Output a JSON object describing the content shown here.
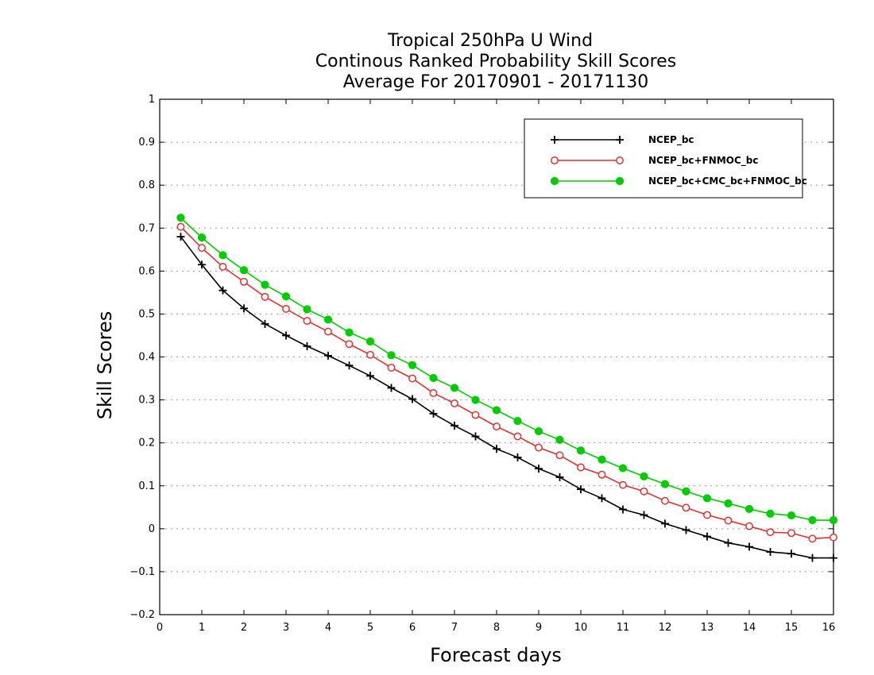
{
  "chart_data": {
    "type": "line",
    "title_lines": [
      "Tropical 250hPa U Wind",
      "Continous Ranked Probability Skill Scores",
      "Average For 20170901 - 20171130"
    ],
    "xlabel": "Forecast days",
    "ylabel": "Skill Scores",
    "xlim": [
      0,
      16
    ],
    "ylim": [
      -0.2,
      1
    ],
    "xticks": [
      "0",
      "1",
      "2",
      "3",
      "4",
      "5",
      "6",
      "7",
      "8",
      "9",
      "10",
      "11",
      "12",
      "13",
      "14",
      "15",
      "16"
    ],
    "yticks": [
      "−0.2",
      "−0.1",
      "0",
      "0.1",
      "0.2",
      "0.3",
      "0.4",
      "0.5",
      "0.6",
      "0.7",
      "0.8",
      "0.9",
      "1"
    ],
    "grid": "horizontal dotted",
    "legend_position": "top-right",
    "x": [
      0.5,
      1,
      1.5,
      2,
      2.5,
      3,
      3.5,
      4,
      4.5,
      5,
      5.5,
      6,
      6.5,
      7,
      7.5,
      8,
      8.5,
      9,
      9.5,
      10,
      10.5,
      11,
      11.5,
      12,
      12.5,
      13,
      13.5,
      14,
      14.5,
      15,
      15.5,
      16
    ],
    "series": [
      {
        "name": "NCEP_bc",
        "color": "#000000",
        "marker": "plus",
        "values": [
          0.68,
          0.615,
          0.555,
          0.513,
          0.477,
          0.45,
          0.425,
          0.403,
          0.38,
          0.356,
          0.328,
          0.302,
          0.268,
          0.24,
          0.215,
          0.186,
          0.166,
          0.14,
          0.12,
          0.092,
          0.071,
          0.045,
          0.032,
          0.012,
          -0.003,
          -0.018,
          -0.033,
          -0.042,
          -0.054,
          -0.058,
          -0.068,
          -0.068
        ]
      },
      {
        "name": "NCEP_bc+FNMOC_bc",
        "color": "#e03030",
        "marker": "open-circle",
        "values": [
          0.703,
          0.654,
          0.61,
          0.575,
          0.54,
          0.512,
          0.484,
          0.459,
          0.43,
          0.405,
          0.375,
          0.35,
          0.316,
          0.292,
          0.265,
          0.238,
          0.215,
          0.189,
          0.171,
          0.143,
          0.126,
          0.102,
          0.087,
          0.065,
          0.049,
          0.032,
          0.019,
          0.006,
          -0.008,
          -0.01,
          -0.023,
          -0.02
        ]
      },
      {
        "name": "NCEP_bc+CMC_bc+FNMOC_bc",
        "color": "#00cc00",
        "marker": "filled-circle",
        "values": [
          0.724,
          0.678,
          0.637,
          0.602,
          0.568,
          0.541,
          0.511,
          0.487,
          0.457,
          0.436,
          0.404,
          0.381,
          0.351,
          0.328,
          0.3,
          0.276,
          0.251,
          0.227,
          0.207,
          0.182,
          0.161,
          0.141,
          0.122,
          0.104,
          0.087,
          0.071,
          0.059,
          0.046,
          0.035,
          0.031,
          0.02,
          0.02
        ]
      }
    ]
  }
}
